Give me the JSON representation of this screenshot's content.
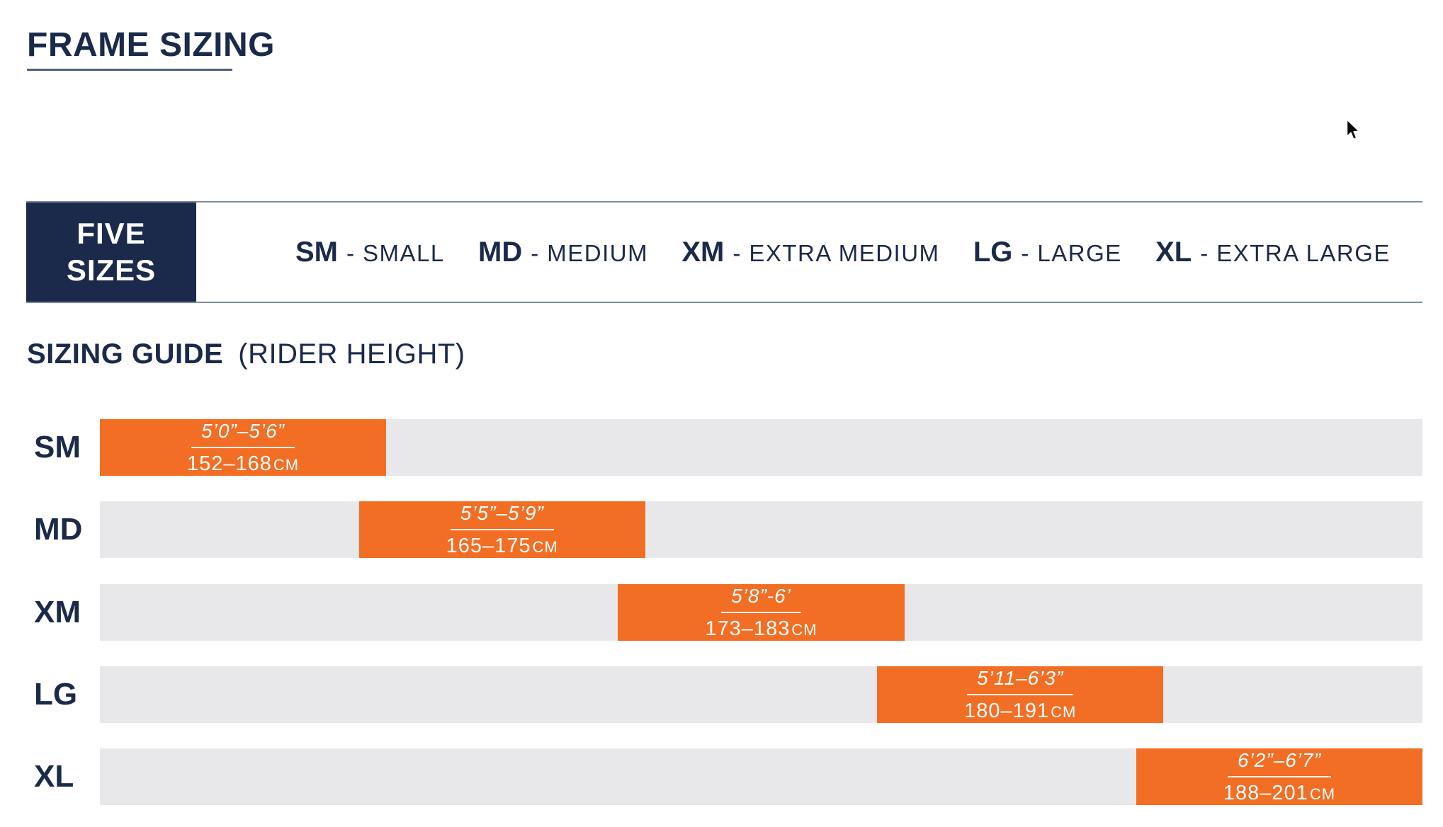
{
  "page_title": "FRAME SIZING",
  "sizes_banner": {
    "heading_line1": "FIVE",
    "heading_line2": "SIZES",
    "separator": "-",
    "items": [
      {
        "abbr": "SM",
        "name": "SMALL"
      },
      {
        "abbr": "MD",
        "name": "MEDIUM"
      },
      {
        "abbr": "XM",
        "name": "EXTRA MEDIUM"
      },
      {
        "abbr": "LG",
        "name": "LARGE"
      },
      {
        "abbr": "XL",
        "name": "EXTRA LARGE"
      }
    ]
  },
  "sizing_guide": {
    "heading_bold": "SIZING GUIDE",
    "heading_note": "(RIDER HEIGHT)"
  },
  "chart_data": {
    "type": "bar",
    "orientation": "horizontal",
    "title": "SIZING GUIDE (RIDER HEIGHT)",
    "categories": [
      "SM",
      "MD",
      "XM",
      "LG",
      "XL"
    ],
    "rows": [
      {
        "label": "SM",
        "imperial": "5’0”–5’6”",
        "metric": "152–168",
        "unit": "cm",
        "range_cm": [
          152,
          168
        ],
        "bar_left_pct": 0,
        "bar_width_pct": 21.64
      },
      {
        "label": "MD",
        "imperial": "5’5”–5’9”",
        "metric": "165–175",
        "unit": "cm",
        "range_cm": [
          165,
          175
        ],
        "bar_left_pct": 19.59,
        "bar_width_pct": 21.64
      },
      {
        "label": "XM",
        "imperial": "5’8”-6’",
        "metric": "173–183",
        "unit": "cm",
        "range_cm": [
          173,
          183
        ],
        "bar_left_pct": 39.18,
        "bar_width_pct": 21.64
      },
      {
        "label": "LG",
        "imperial": "5’11–6’3”",
        "metric": "180–191",
        "unit": "cm",
        "range_cm": [
          180,
          191
        ],
        "bar_left_pct": 58.77,
        "bar_width_pct": 21.64
      },
      {
        "label": "XL",
        "imperial": "6’2”–6’7”",
        "metric": "188–201",
        "unit": "cm",
        "range_cm": [
          188,
          201
        ],
        "bar_left_pct": 78.36,
        "bar_width_pct": 21.64
      }
    ],
    "bar_color": "#f26e24",
    "track_color": "#e8e8ea",
    "legend": false,
    "grid": false
  },
  "colors": {
    "navy": "#1b2a4a",
    "orange": "#f26e24",
    "track_gray": "#e8e8ea",
    "banner_border": "#7b8aa1"
  }
}
